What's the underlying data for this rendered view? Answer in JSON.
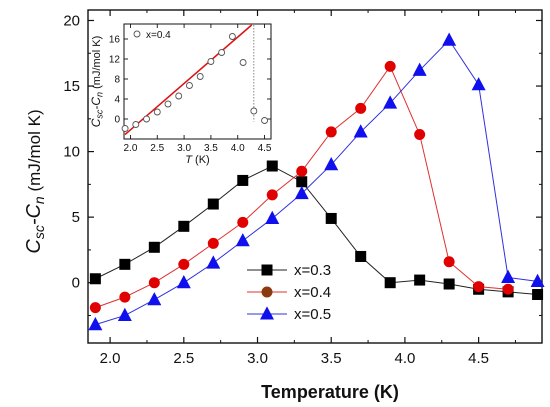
{
  "chart_data": [
    {
      "type": "line",
      "xlabel": "Temperature (K)",
      "ylabel": "C",
      "ylabel_sub1": "sc",
      "ylabel_mid": "-C",
      "ylabel_sub2": "n",
      "ylabel_unit": " (mJ/mol K)",
      "xlim": [
        1.85,
        4.93
      ],
      "ylim": [
        -4.6,
        20.8
      ],
      "xticks": [
        2.0,
        2.5,
        3.0,
        3.5,
        4.0,
        4.5
      ],
      "xtick_labels": [
        "2.0",
        "2.5",
        "3.0",
        "3.5",
        "4.0",
        "4.5"
      ],
      "yticks": [
        0,
        5,
        10,
        15,
        20
      ],
      "ytick_labels": [
        "0",
        "5",
        "10",
        "15",
        "20"
      ],
      "grid": false,
      "legend_position": "bottom-center",
      "series": [
        {
          "name": "x=0.3",
          "marker": "square",
          "color": "#000000",
          "line_color": "#222222",
          "fill": "#000000",
          "x": [
            1.9,
            2.1,
            2.3,
            2.5,
            2.7,
            2.9,
            3.1,
            3.3,
            3.5,
            3.7,
            3.9,
            4.1,
            4.3,
            4.5,
            4.7,
            4.9
          ],
          "y": [
            0.3,
            1.4,
            2.7,
            4.3,
            6.0,
            7.8,
            8.9,
            7.7,
            4.9,
            2.0,
            0.0,
            0.2,
            -0.1,
            -0.5,
            -0.7,
            -0.9
          ]
        },
        {
          "name": "x=0.4",
          "marker": "circle",
          "color": "#e00000",
          "line_color": "#e03030",
          "fill": "#e00000",
          "legend_fill": "#8b3a10",
          "x": [
            1.9,
            2.1,
            2.3,
            2.5,
            2.7,
            2.9,
            3.1,
            3.3,
            3.5,
            3.7,
            3.9,
            4.1,
            4.3,
            4.5,
            4.7
          ],
          "y": [
            -1.9,
            -1.1,
            0.0,
            1.4,
            3.0,
            4.6,
            6.7,
            8.5,
            11.5,
            13.3,
            16.5,
            11.3,
            1.6,
            -0.3,
            -0.5
          ]
        },
        {
          "name": "x=0.5",
          "marker": "triangle",
          "color": "#1010ee",
          "line_color": "#3030dd",
          "fill": "#1010ee",
          "x": [
            1.9,
            2.1,
            2.3,
            2.5,
            2.7,
            2.9,
            3.1,
            3.3,
            3.5,
            3.7,
            3.9,
            4.1,
            4.3,
            4.5,
            4.7,
            4.9
          ],
          "y": [
            -3.2,
            -2.5,
            -1.3,
            0.0,
            1.5,
            3.2,
            4.9,
            6.8,
            9.0,
            11.5,
            13.7,
            16.2,
            18.5,
            15.1,
            0.4,
            0.1
          ]
        }
      ]
    },
    {
      "type": "scatter",
      "inset": true,
      "annotation": "x=0.4",
      "xlabel": "T",
      "xlabel_unit": " (K)",
      "ylabel": "C",
      "ylabel_sub1": "sc",
      "ylabel_mid": "-C",
      "ylabel_sub2": "n",
      "ylabel_unit": " (mJ/mol K)",
      "xlim": [
        1.88,
        4.62
      ],
      "ylim": [
        -4,
        19
      ],
      "xticks": [
        2.0,
        2.5,
        3.0,
        3.5,
        4.0,
        4.5
      ],
      "xtick_labels": [
        "2.0",
        "2.5",
        "3.0",
        "3.5",
        "4.0",
        "4.5"
      ],
      "yticks": [
        0,
        4,
        8,
        12,
        16
      ],
      "ytick_labels": [
        "0",
        "4",
        "8",
        "12",
        "16"
      ],
      "series": [
        {
          "marker": "open-circle",
          "color": "#555555",
          "x": [
            1.9,
            2.1,
            2.3,
            2.5,
            2.7,
            2.9,
            3.1,
            3.3,
            3.5,
            3.7,
            3.9,
            4.1,
            4.3,
            4.5
          ],
          "y": [
            -1.9,
            -1.1,
            0.0,
            1.4,
            3.0,
            4.6,
            6.7,
            8.5,
            11.5,
            13.3,
            16.5,
            11.3,
            1.6,
            -0.3
          ]
        }
      ],
      "fit_line": {
        "color": "#dd1111",
        "x": [
          1.9,
          4.26
        ],
        "y": [
          -3.1,
          18.8
        ]
      },
      "drop_line": {
        "color": "#666666",
        "x": 4.3,
        "y_top": 18.8,
        "y_bottom": -0.5
      }
    }
  ]
}
